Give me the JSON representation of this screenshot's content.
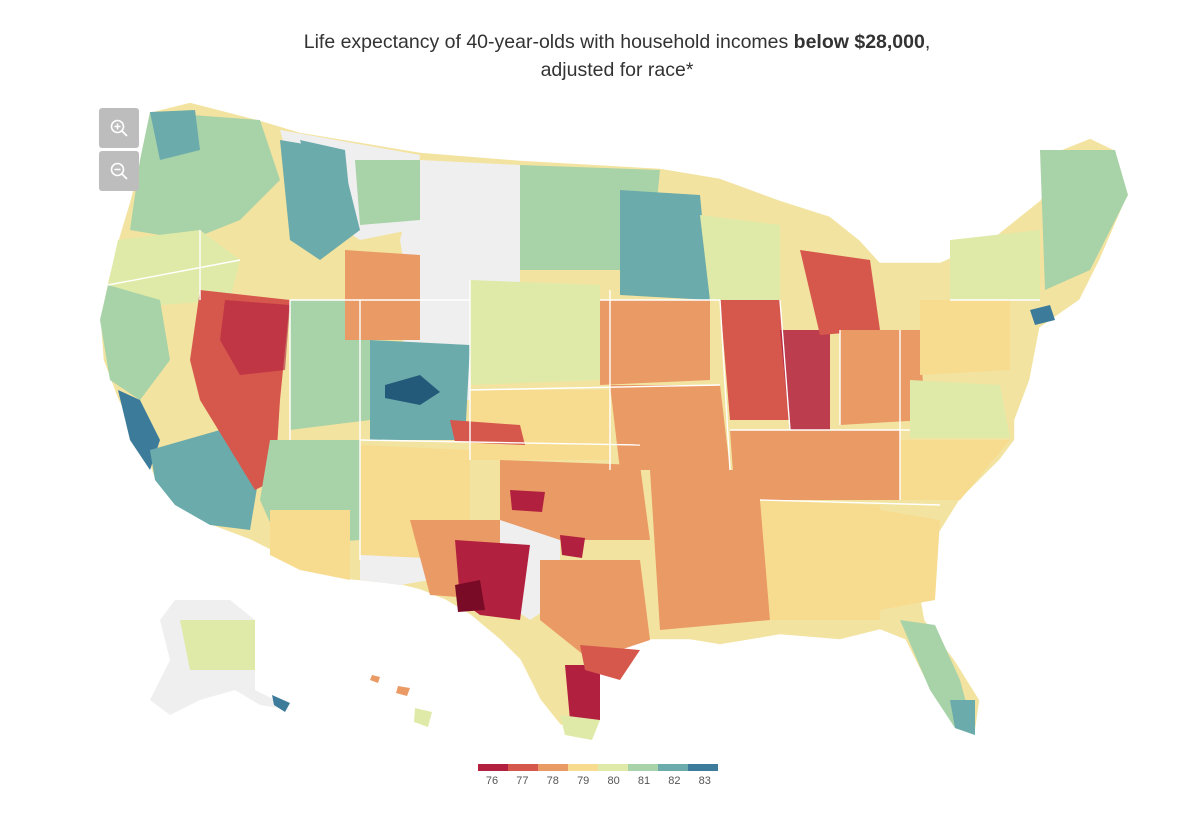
{
  "header": {
    "title_before": "Life expectancy of 40-year-olds with household incomes ",
    "title_bold": "below $28,000",
    "title_after": ",",
    "subtitle": "adjusted for race*"
  },
  "controls": {
    "zoom_in_icon": "zoom-in-icon",
    "zoom_out_icon": "zoom-out-icon"
  },
  "legend": {
    "labels": [
      "76",
      "77",
      "78",
      "79",
      "80",
      "81",
      "82",
      "83"
    ],
    "colors": [
      "#b2203f",
      "#d6584d",
      "#ea9a65",
      "#f7dc90",
      "#dfeaa8",
      "#a8d2a8",
      "#6cabab",
      "#3d7b9a"
    ]
  },
  "map_colors": {
    "no_data": "#efefef",
    "state_border": "#ffffff"
  }
}
